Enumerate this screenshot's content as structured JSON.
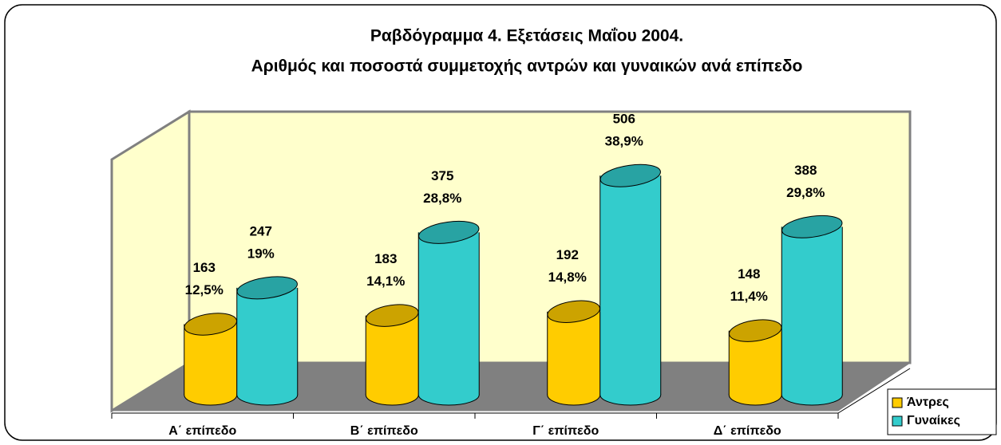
{
  "chart_data": {
    "type": "bar",
    "title": "Ραβδόγραμμα 4. Εξετάσεις Μαΐου 2004.",
    "subtitle": "Αριθμός και ποσοστά συμμετοχής αντρών και γυναικών ανά επίπεδο",
    "categories": [
      "Α΄ επίπεδο",
      "Β΄ επίπεδο",
      "Γ΄ επίπεδο",
      "Δ΄ επίπεδο"
    ],
    "series": [
      {
        "name": "Άντρες",
        "color": "#ffcc00",
        "values": [
          163,
          183,
          192,
          148
        ],
        "percentages": [
          12.5,
          14.1,
          14.8,
          11.4
        ],
        "percentage_labels": [
          "12,5%",
          "14,1%",
          "14,8%",
          "11,4%"
        ]
      },
      {
        "name": "Γυναίκες",
        "color": "#33cccc",
        "values": [
          247,
          375,
          506,
          388
        ],
        "percentages": [
          19,
          28.8,
          38.9,
          29.8
        ],
        "percentage_labels": [
          "19%",
          "28,8%",
          "38,9%",
          "29,8%"
        ]
      }
    ],
    "ylim": [
      0,
      600
    ],
    "legend": "bottom-right"
  }
}
